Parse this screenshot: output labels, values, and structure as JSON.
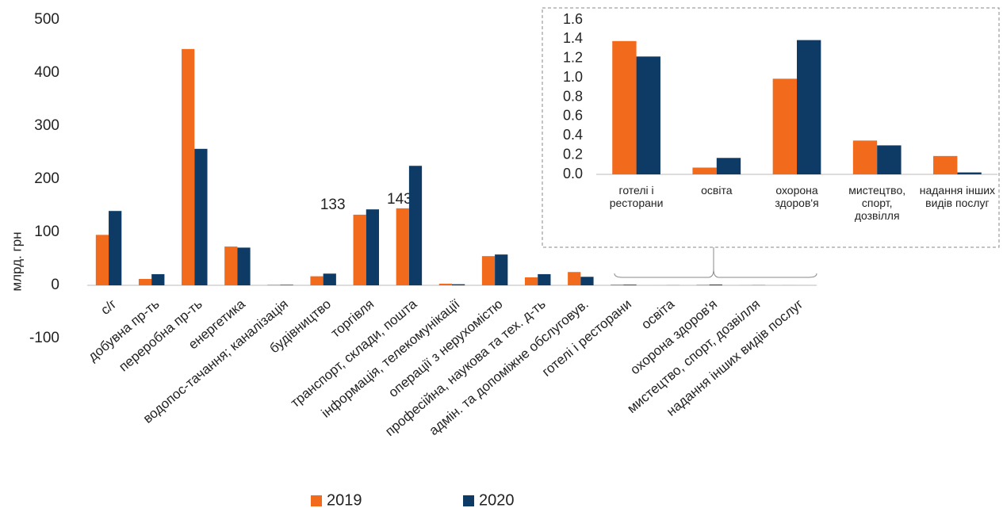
{
  "chart_data": [
    {
      "type": "bar",
      "y_label": "млрд. грн",
      "categories": [
        "с/г",
        "добувна пр-ть",
        "переробна пр-ть",
        "енергетика",
        "водопос-тачання; каналізація",
        "будівництво",
        "торгівля",
        "транспорт, склади, пошта",
        "інформація, телекомунікації",
        "операції з нерухомістю",
        "професійна, наукова та тех. д-ть",
        "адмін. та допоміжне обслуговув.",
        "готелі і ресторани",
        "освіта",
        "охорона здоров'я",
        "мистецтво, спорт, дозвілля",
        "надання інших видів послуг"
      ],
      "series": [
        {
          "name": "2019",
          "color": "#f26b1d",
          "values": [
            95,
            12,
            445,
            73,
            1,
            17,
            133,
            145,
            3,
            55,
            15,
            25,
            1.38,
            0.07,
            0.99,
            0.35,
            0.19
          ],
          "value_labels": [
            null,
            null,
            null,
            null,
            null,
            null,
            "133",
            null,
            null,
            null,
            null,
            null,
            null,
            null,
            null,
            null,
            null
          ]
        },
        {
          "name": "2020",
          "color": "#0d3b66",
          "values": [
            140,
            21,
            257,
            71,
            1,
            22,
            143,
            225,
            2,
            58,
            21,
            16,
            1.22,
            0.17,
            1.39,
            0.3,
            0.02
          ],
          "value_labels": [
            null,
            null,
            null,
            null,
            null,
            null,
            "143",
            null,
            null,
            null,
            null,
            null,
            null,
            null,
            null,
            null,
            null
          ]
        }
      ],
      "ylim": [
        -100,
        500
      ],
      "yticks": [
        -100,
        0,
        100,
        200,
        300,
        400,
        500
      ],
      "grid": false
    },
    {
      "type": "bar",
      "categories": [
        "готелі і ресторани",
        "освіта",
        "охорона здоров'я",
        "мистецтво, спорт, дозвілля",
        "надання інших видів послуг"
      ],
      "series": [
        {
          "name": "2019",
          "color": "#f26b1d",
          "values": [
            1.38,
            0.07,
            0.99,
            0.35,
            0.19
          ]
        },
        {
          "name": "2020",
          "color": "#0d3b66",
          "values": [
            1.22,
            0.17,
            1.39,
            0.3,
            0.02
          ]
        }
      ],
      "ylim": [
        0,
        1.6
      ],
      "yticks": [
        {
          "value": 0,
          "label": "0.0"
        },
        0.2,
        0.4,
        0.6,
        0.8,
        {
          "value": 1,
          "label": "1.0"
        },
        1.2,
        1.4,
        1.6
      ],
      "grid": false
    }
  ]
}
